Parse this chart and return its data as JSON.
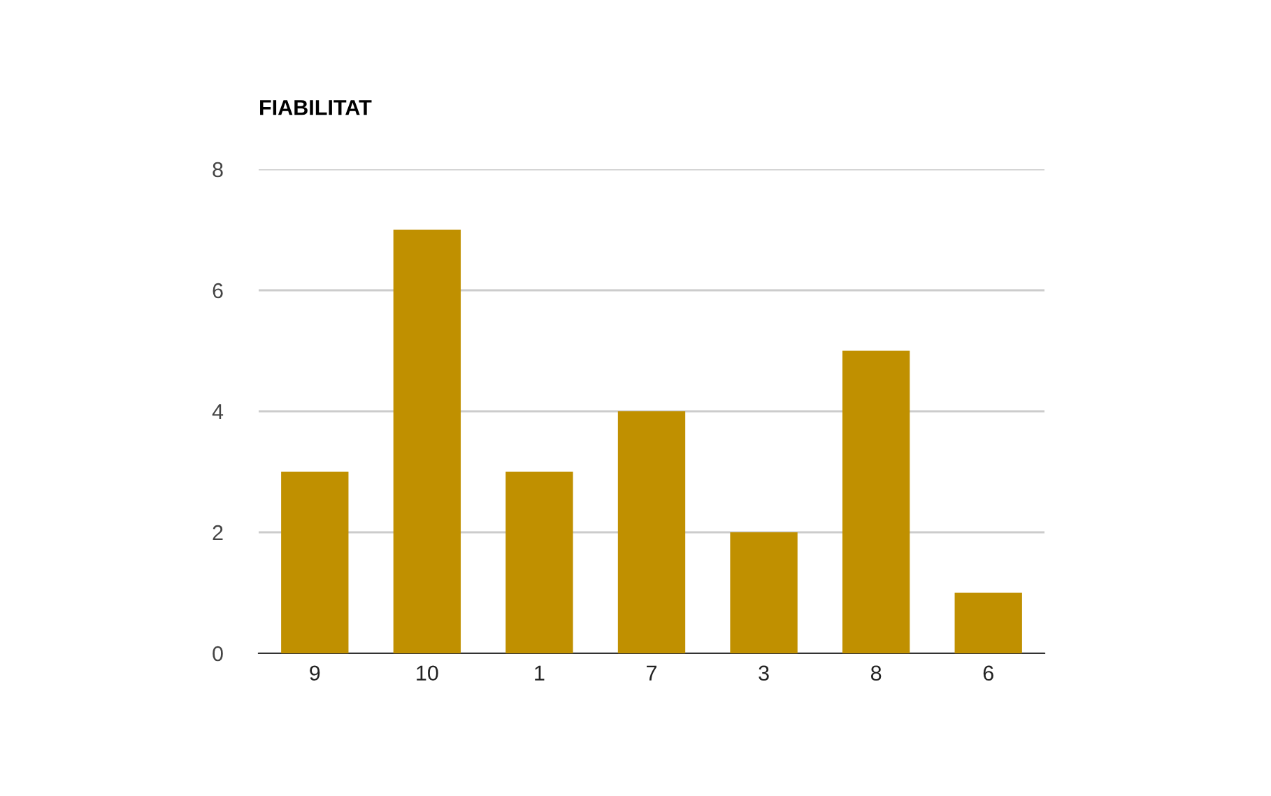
{
  "chart_data": {
    "type": "bar",
    "title": "FIABILITAT",
    "categories": [
      "9",
      "10",
      "1",
      "7",
      "3",
      "8",
      "6"
    ],
    "values": [
      3,
      7,
      3,
      4,
      2,
      5,
      1
    ],
    "color": "#c09000",
    "ylim": [
      0,
      8
    ],
    "yticks": [
      0,
      2,
      4,
      6,
      8
    ],
    "grid": "y"
  }
}
